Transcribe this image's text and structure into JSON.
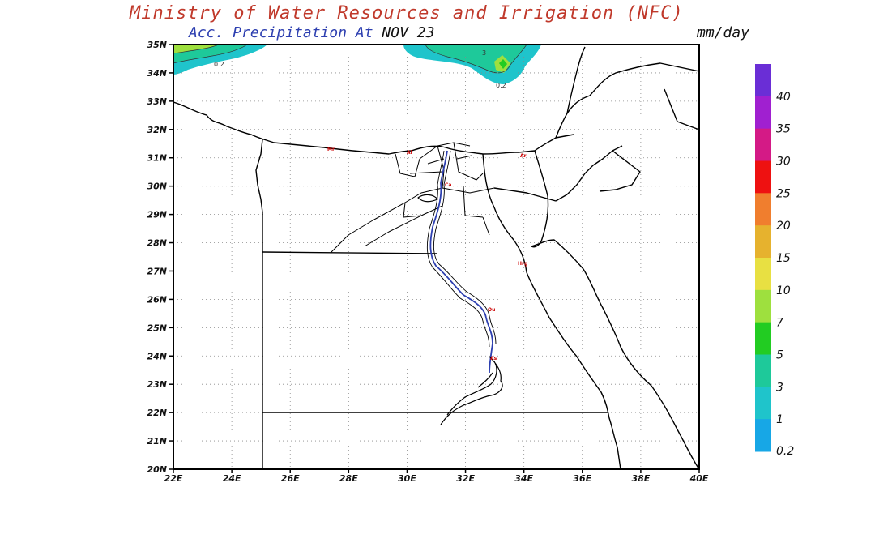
{
  "header": {
    "title": "Ministry of Water Resources and Irrigation (NFC)",
    "subtitle_prefix": "Acc. Precipitation  At",
    "subtitle_date": "NOV 23",
    "units": "mm/day"
  },
  "map": {
    "lat_labels": [
      "35N",
      "34N",
      "33N",
      "32N",
      "31N",
      "30N",
      "29N",
      "28N",
      "27N",
      "26N",
      "25N",
      "24N",
      "23N",
      "22N",
      "21N",
      "20N"
    ],
    "lon_labels": [
      "22E",
      "24E",
      "26E",
      "28E",
      "30E",
      "32E",
      "34E",
      "36E",
      "38E",
      "40E"
    ],
    "contour_labels": [
      "0.2",
      "0.2",
      "3"
    ],
    "city_labels": [
      "Mr",
      "Al",
      "Ar",
      "Ca",
      "Hrg",
      "Ou",
      "As"
    ]
  },
  "colorbar": {
    "labels": [
      "40",
      "35",
      "30",
      "25",
      "20",
      "15",
      "10",
      "7",
      "5",
      "3",
      "1",
      "0.2"
    ],
    "colors": [
      "#6a2ed6",
      "#a020d0",
      "#d41a86",
      "#ee1111",
      "#f07e2e",
      "#e6b22e",
      "#e8e042",
      "#9ee03e",
      "#22cc22",
      "#1ec99a",
      "#1fc4cb",
      "#17a7e6"
    ]
  }
}
